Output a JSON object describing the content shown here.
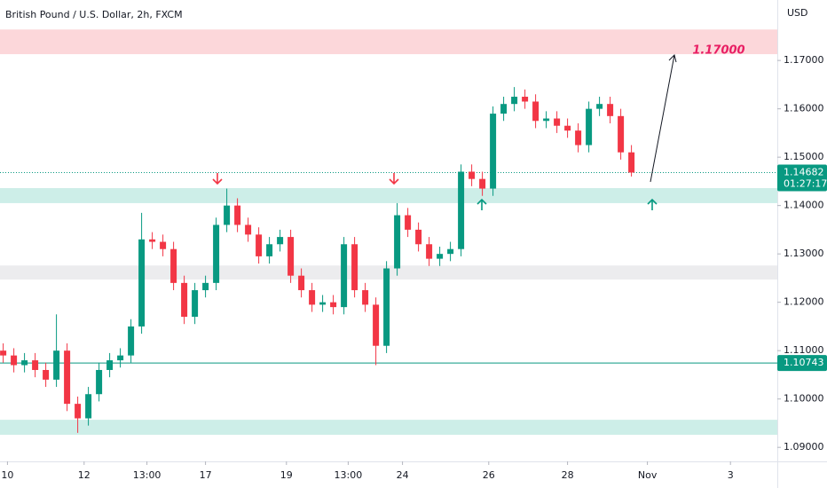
{
  "chart_data": {
    "type": "candlestick",
    "title": "British Pound / U.S. Dollar, 2h, FXCM",
    "currency": "USD",
    "up_color": "#089981",
    "down_color": "#f23645",
    "x": [
      0,
      1,
      2,
      3,
      4,
      5,
      6,
      7,
      8,
      9,
      10,
      11,
      12,
      13,
      14,
      15,
      16,
      17,
      18,
      19,
      20,
      21,
      22,
      23,
      24,
      25,
      26,
      27,
      28,
      29,
      30,
      31,
      32,
      33,
      34,
      35,
      36,
      37,
      38,
      39,
      40,
      41,
      42,
      43,
      44,
      45,
      46,
      47,
      48,
      49,
      50,
      51,
      52,
      53,
      54,
      55,
      56,
      57,
      58,
      59
    ],
    "open": [
      1.11,
      1.109,
      1.107,
      1.108,
      1.106,
      1.104,
      1.11,
      1.099,
      1.096,
      1.101,
      1.106,
      1.108,
      1.109,
      1.115,
      1.133,
      1.1325,
      1.131,
      1.124,
      1.117,
      1.1225,
      1.124,
      1.136,
      1.14,
      1.136,
      1.134,
      1.1295,
      1.132,
      1.1335,
      1.1255,
      1.1225,
      1.1195,
      1.12,
      1.119,
      1.132,
      1.1225,
      1.1195,
      1.111,
      1.127,
      1.138,
      1.135,
      1.132,
      1.129,
      1.13,
      1.131,
      1.147,
      1.1455,
      1.1435,
      1.159,
      1.161,
      1.1625,
      1.1615,
      1.1575,
      1.158,
      1.1565,
      1.1555,
      1.1525,
      1.16,
      1.161,
      1.1585,
      1.151
    ],
    "high": [
      1.1115,
      1.1105,
      1.1095,
      1.1095,
      1.1075,
      1.1175,
      1.1115,
      1.1005,
      1.1025,
      1.1075,
      1.1095,
      1.1105,
      1.1165,
      1.1385,
      1.1345,
      1.134,
      1.1325,
      1.1255,
      1.124,
      1.1255,
      1.1375,
      1.1435,
      1.1415,
      1.1375,
      1.1355,
      1.1335,
      1.135,
      1.135,
      1.127,
      1.124,
      1.1215,
      1.1215,
      1.1335,
      1.1335,
      1.124,
      1.121,
      1.1285,
      1.1405,
      1.1395,
      1.1365,
      1.1335,
      1.1315,
      1.1325,
      1.1485,
      1.1485,
      1.147,
      1.1605,
      1.1625,
      1.1645,
      1.164,
      1.163,
      1.1595,
      1.1595,
      1.158,
      1.157,
      1.1615,
      1.1625,
      1.1625,
      1.16,
      1.1525
    ],
    "low": [
      1.1075,
      1.1055,
      1.1055,
      1.1045,
      1.1025,
      1.1025,
      1.0975,
      1.093,
      1.0945,
      1.0995,
      1.1045,
      1.1065,
      1.1075,
      1.1135,
      1.131,
      1.1295,
      1.1225,
      1.1155,
      1.1155,
      1.121,
      1.1225,
      1.1345,
      1.1345,
      1.1325,
      1.128,
      1.128,
      1.1305,
      1.124,
      1.121,
      1.118,
      1.118,
      1.1175,
      1.1175,
      1.121,
      1.118,
      1.107,
      1.1095,
      1.1255,
      1.1335,
      1.1305,
      1.1275,
      1.1275,
      1.1285,
      1.1295,
      1.144,
      1.142,
      1.142,
      1.1575,
      1.1595,
      1.16,
      1.156,
      1.156,
      1.155,
      1.154,
      1.151,
      1.151,
      1.1585,
      1.157,
      1.1495,
      1.146
    ],
    "close": [
      1.109,
      1.107,
      1.108,
      1.106,
      1.104,
      1.11,
      1.099,
      1.096,
      1.101,
      1.106,
      1.108,
      1.109,
      1.115,
      1.133,
      1.1325,
      1.131,
      1.124,
      1.117,
      1.1225,
      1.124,
      1.136,
      1.14,
      1.136,
      1.134,
      1.1295,
      1.132,
      1.1335,
      1.1255,
      1.1225,
      1.1195,
      1.12,
      1.119,
      1.132,
      1.1225,
      1.1195,
      1.111,
      1.127,
      1.138,
      1.135,
      1.132,
      1.129,
      1.13,
      1.131,
      1.147,
      1.1455,
      1.1435,
      1.159,
      1.161,
      1.1625,
      1.1615,
      1.1575,
      1.158,
      1.1565,
      1.1555,
      1.1525,
      1.16,
      1.161,
      1.1585,
      1.151,
      1.14682
    ],
    "xlim": [
      -0.3,
      72.7
    ],
    "ylim": [
      1.0871,
      1.1825
    ],
    "xticks": [
      {
        "value": 0.4,
        "label": "10"
      },
      {
        "value": 7.6,
        "label": "12"
      },
      {
        "value": 13.5,
        "label": "13:00"
      },
      {
        "value": 19,
        "label": "17"
      },
      {
        "value": 26.6,
        "label": "19"
      },
      {
        "value": 32.4,
        "label": "13:00"
      },
      {
        "value": 37.5,
        "label": "24"
      },
      {
        "value": 45.6,
        "label": "26"
      },
      {
        "value": 53,
        "label": "28"
      },
      {
        "value": 60.5,
        "label": "Nov"
      },
      {
        "value": 68.3,
        "label": "3"
      }
    ],
    "yticks": [
      {
        "value": 1.09,
        "label": "1.09000"
      },
      {
        "value": 1.1,
        "label": "1.10000"
      },
      {
        "value": 1.11,
        "label": "1.11000"
      },
      {
        "value": 1.12,
        "label": "1.12000"
      },
      {
        "value": 1.13,
        "label": "1.13000"
      },
      {
        "value": 1.14,
        "label": "1.14000"
      },
      {
        "value": 1.15,
        "label": "1.15000"
      },
      {
        "value": 1.16,
        "label": "1.16000"
      },
      {
        "value": 1.17,
        "label": "1.17000"
      }
    ],
    "zones": [
      {
        "from": 1.1713,
        "to": 1.1764,
        "color": "#fcd7da"
      },
      {
        "from": 1.1405,
        "to": 1.1436,
        "color": "#cdeee8"
      },
      {
        "from": 1.1247,
        "to": 1.1276,
        "color": "#ececee"
      },
      {
        "from": 1.0926,
        "to": 1.0957,
        "color": "#cdeee8"
      }
    ],
    "level_line": {
      "value": 1.10743,
      "label": "1.10743",
      "color": "#089981"
    },
    "last_price": {
      "value": 1.14682,
      "label": "1.14682",
      "countdown": "01:27:17",
      "color": "#089981"
    },
    "target": {
      "value": 1.17,
      "label": "1.17000",
      "color": "#e91e63"
    }
  }
}
